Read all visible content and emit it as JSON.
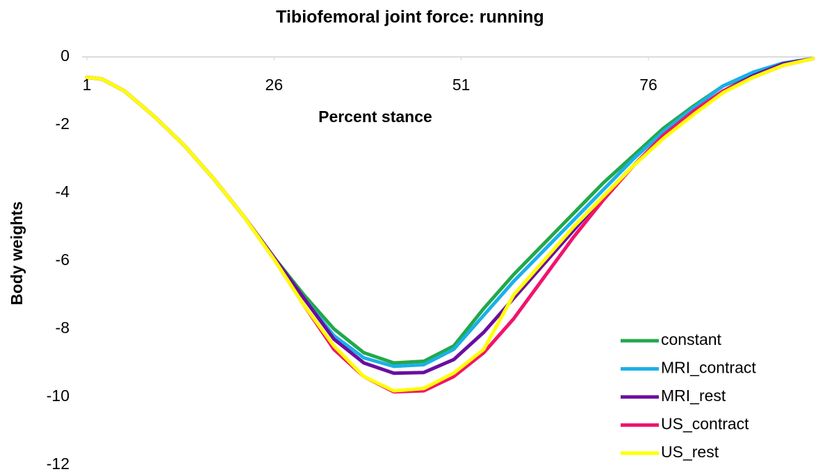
{
  "chart_data": {
    "type": "line",
    "title": "Tibiofemoral joint force: running",
    "x_label": "Percent stance",
    "y_label": "Body weights",
    "x": [
      1,
      3,
      6,
      10,
      14,
      18,
      22,
      26,
      30,
      34,
      38,
      42,
      46,
      50,
      54,
      58,
      62,
      66,
      70,
      74,
      78,
      82,
      86,
      90,
      94,
      98
    ],
    "xlim": [
      1,
      98
    ],
    "xticks": [
      1,
      26,
      51,
      76
    ],
    "ylim": [
      -12,
      0
    ],
    "yticks": [
      0,
      -2,
      -4,
      -6,
      -8,
      -10,
      -12
    ],
    "grid": false,
    "legend": "lower right",
    "series": [
      {
        "name": "constant",
        "color": "#22a84a",
        "values": [
          -0.6,
          -0.65,
          -1.0,
          -1.75,
          -2.6,
          -3.6,
          -4.7,
          -5.9,
          -7.0,
          -8.0,
          -8.7,
          -9.0,
          -8.95,
          -8.5,
          -7.4,
          -6.4,
          -5.5,
          -4.6,
          -3.7,
          -2.9,
          -2.1,
          -1.45,
          -0.85,
          -0.5,
          -0.2,
          -0.05
        ]
      },
      {
        "name": "MRI_contract",
        "color": "#1ab0e8",
        "values": [
          -0.6,
          -0.65,
          -1.0,
          -1.75,
          -2.6,
          -3.6,
          -4.7,
          -5.9,
          -7.1,
          -8.2,
          -8.85,
          -9.1,
          -9.05,
          -8.6,
          -7.6,
          -6.6,
          -5.7,
          -4.8,
          -3.9,
          -3.0,
          -2.2,
          -1.5,
          -0.85,
          -0.45,
          -0.18,
          -0.05
        ]
      },
      {
        "name": "MRI_rest",
        "color": "#6a0da0",
        "values": [
          -0.6,
          -0.65,
          -1.0,
          -1.75,
          -2.6,
          -3.6,
          -4.7,
          -5.9,
          -7.1,
          -8.3,
          -9.0,
          -9.3,
          -9.28,
          -8.9,
          -8.1,
          -7.1,
          -6.1,
          -5.1,
          -4.1,
          -3.2,
          -2.35,
          -1.6,
          -1.0,
          -0.55,
          -0.2,
          -0.05
        ]
      },
      {
        "name": "US_contract",
        "color": "#f0146e",
        "values": [
          -0.6,
          -0.65,
          -1.0,
          -1.75,
          -2.6,
          -3.6,
          -4.7,
          -5.95,
          -7.3,
          -8.6,
          -9.4,
          -9.85,
          -9.82,
          -9.4,
          -8.7,
          -7.7,
          -6.5,
          -5.3,
          -4.2,
          -3.2,
          -2.3,
          -1.6,
          -1.0,
          -0.6,
          -0.25,
          -0.05
        ]
      },
      {
        "name": "US_rest",
        "color": "#ffff00",
        "values": [
          -0.6,
          -0.65,
          -1.0,
          -1.75,
          -2.6,
          -3.6,
          -4.7,
          -5.95,
          -7.3,
          -8.5,
          -9.4,
          -9.82,
          -9.75,
          -9.3,
          -8.6,
          -7.0,
          -6.0,
          -5.0,
          -4.1,
          -3.2,
          -2.4,
          -1.7,
          -1.05,
          -0.6,
          -0.25,
          -0.05
        ]
      }
    ]
  }
}
